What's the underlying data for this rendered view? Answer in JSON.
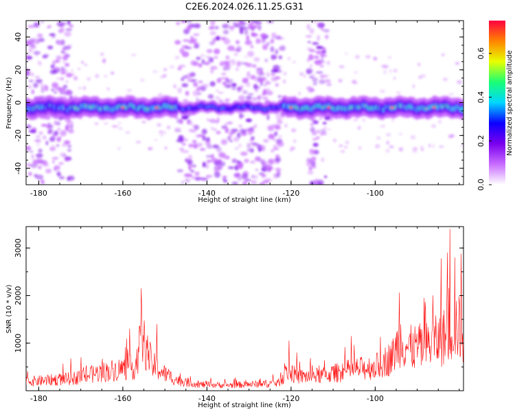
{
  "title": "C2E6.2024.026.11.25.G31",
  "colormap": [
    "#ffffff",
    "#c86cff",
    "#7a00ee",
    "#0b00ff",
    "#00d7ff",
    "#19ff74",
    "#e8ff00",
    "#ff8400",
    "#ff0040"
  ],
  "chart_data": [
    {
      "type": "heatmap",
      "xlabel": "Height of straight line (km)",
      "ylabel": "Frequency (Hz)",
      "xlim": [
        -183,
        -79
      ],
      "ylim": [
        -50,
        50
      ],
      "xticks": [
        "-180",
        "-160",
        "-140",
        "-120",
        "-100"
      ],
      "yticks": [
        "-40",
        "-20",
        "0",
        "20",
        "40"
      ],
      "colorbar": {
        "label": "Normalized spectral amplitude",
        "range": [
          0,
          0.75
        ],
        "ticks": [
          "0.0",
          "0.2",
          "0.4",
          "0.6"
        ]
      },
      "features": {
        "main_band_center_hz": -3,
        "main_band_halfwidth_hz": 6,
        "band_gap_km": [
          -147,
          -122
        ],
        "band_weak_km": [
          -183,
          -172
        ],
        "noise_columns_km": [
          [
            -183,
            -172
          ],
          [
            -147,
            -122
          ],
          [
            -116,
            -111
          ]
        ],
        "peak_color_hex": "#ff0040"
      }
    },
    {
      "type": "line",
      "xlabel": "Height of straight line (km)",
      "ylabel": "SNR (10 * v/v)",
      "xlim": [
        -183,
        -79
      ],
      "ylim": [
        0,
        3450
      ],
      "xticks": [
        "-180",
        "-160",
        "-140",
        "-120",
        "-100"
      ],
      "yticks": [
        "1000",
        "2000",
        "3000"
      ],
      "color": "#ff0000",
      "envelope": {
        "x": [
          -183,
          -178,
          -172,
          -166,
          -160,
          -157,
          -155.5,
          -153,
          -150,
          -147,
          -142,
          -135,
          -128,
          -123,
          -121,
          -118,
          -112,
          -106,
          -100,
          -96,
          -94,
          -92,
          -88,
          -85,
          -83,
          -81,
          -79
        ],
        "y": [
          250,
          280,
          330,
          480,
          600,
          650,
          1450,
          700,
          460,
          280,
          170,
          150,
          180,
          210,
          520,
          380,
          420,
          560,
          650,
          900,
          1400,
          1150,
          1200,
          1350,
          1500,
          1800,
          1550
        ]
      },
      "spikes": {
        "x": [
          -155.6,
          -158.4,
          -151.9,
          -120.5,
          -94.2,
          -88.4,
          -86.3,
          -84.3,
          -82.8,
          -82.2,
          -81.1,
          -79.6
        ],
        "y": [
          2150,
          1300,
          1400,
          1050,
          2060,
          1950,
          2000,
          2780,
          2900,
          3400,
          2800,
          2880
        ]
      }
    }
  ]
}
